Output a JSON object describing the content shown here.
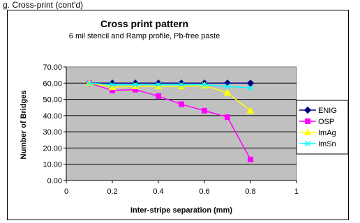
{
  "caption": "g. Cross-print (cont'd)",
  "chart_data": {
    "type": "line",
    "title": "Cross print pattern",
    "subtitle": "6 mil stencil and Ramp profile, Pb-free paste",
    "xlabel": "Inter-stripe separation (mm)",
    "ylabel": "Number of Bridges",
    "xlim": [
      0,
      1
    ],
    "ylim": [
      0,
      70
    ],
    "x_ticks": [
      "0",
      "0.2",
      "0.4",
      "0.6",
      "0.8",
      "1"
    ],
    "x_tick_values": [
      0,
      0.2,
      0.4,
      0.6,
      0.8,
      1
    ],
    "y_ticks": [
      "0.00",
      "10.00",
      "20.00",
      "30.00",
      "40.00",
      "50.00",
      "60.00",
      "70.00"
    ],
    "y_tick_values": [
      0,
      10,
      20,
      30,
      40,
      50,
      60,
      70
    ],
    "grid": "horizontal",
    "plot_background": "#c0c0c0",
    "legend_position": "right",
    "series": [
      {
        "name": "ENIG",
        "color": "#000080",
        "marker": "diamond",
        "x": [
          0.1,
          0.2,
          0.3,
          0.4,
          0.5,
          0.6,
          0.7,
          0.8
        ],
        "y": [
          60,
          60,
          60,
          60,
          60,
          60,
          60,
          60
        ]
      },
      {
        "name": "OSP",
        "color": "#ff00ff",
        "marker": "square",
        "x": [
          0.1,
          0.2,
          0.3,
          0.4,
          0.5,
          0.6,
          0.7,
          0.8
        ],
        "y": [
          60,
          55.5,
          56,
          52,
          47,
          43,
          39,
          13
        ]
      },
      {
        "name": "ImAg",
        "color": "#ffff00",
        "marker": "triangle",
        "x": [
          0.1,
          0.2,
          0.3,
          0.4,
          0.5,
          0.6,
          0.7,
          0.8
        ],
        "y": [
          60,
          57.5,
          58,
          58,
          58,
          58.5,
          54,
          43
        ]
      },
      {
        "name": "ImSn",
        "color": "#00ffff",
        "marker": "x",
        "x": [
          0.1,
          0.2,
          0.3,
          0.4,
          0.5,
          0.6,
          0.7,
          0.8
        ],
        "y": [
          60,
          59,
          59,
          59,
          59,
          59,
          58,
          57
        ]
      }
    ]
  }
}
